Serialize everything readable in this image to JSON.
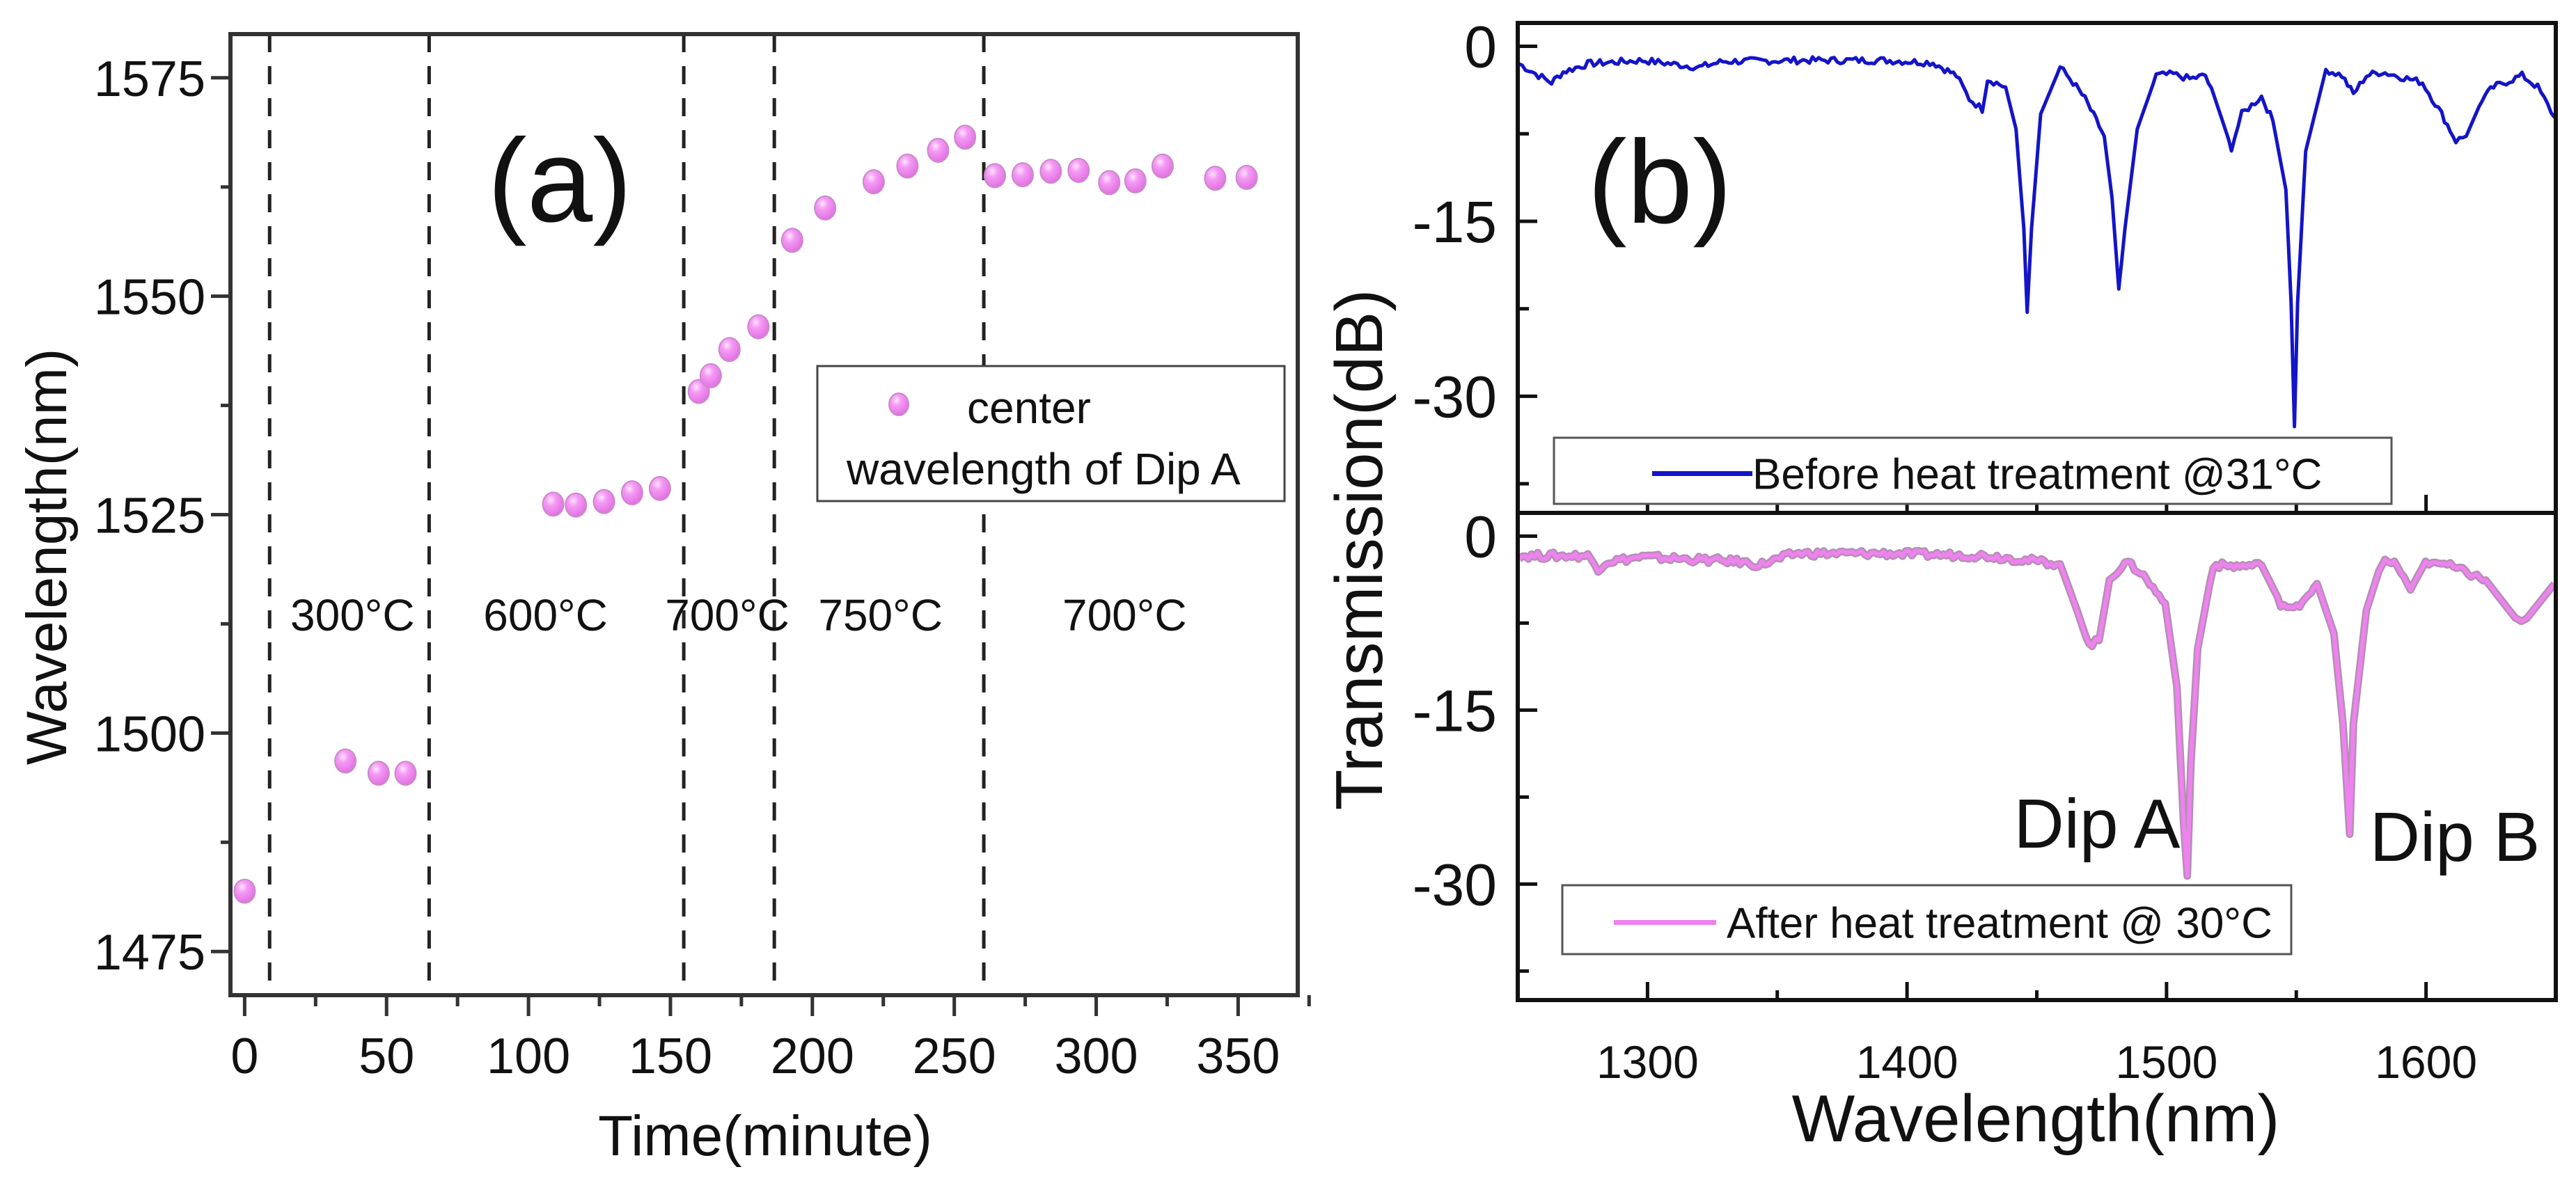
{
  "chart_data": [
    {
      "type": "scatter",
      "panel_label": "(a)",
      "xlabel": "Time(minute)",
      "ylabel": "Wavelength(nm)",
      "xlim": [
        -5,
        371
      ],
      "ylim": [
        1470,
        1580
      ],
      "xticks": [
        0,
        50,
        100,
        150,
        200,
        250,
        300,
        350
      ],
      "xtick_labels": [
        "0",
        "50",
        "100",
        "150",
        "200",
        "250",
        "300",
        "350"
      ],
      "yticks": [
        1475,
        1500,
        1525,
        1550,
        1575
      ],
      "ytick_labels": [
        "1475",
        "1500",
        "1525",
        "1550",
        "1575"
      ],
      "grid": false,
      "legend": {
        "placement": "right-middle",
        "lines": [
          "center",
          "wavelength of Dip A"
        ]
      },
      "series": [
        {
          "name": "center wavelength of Dip A",
          "color": "#ee82ee",
          "x": [
            0,
            35.5,
            47.2,
            56.7,
            108.7,
            116.7,
            126.6,
            136.5,
            146.3,
            160,
            164.2,
            170.8,
            181,
            192.9,
            204.5,
            221.6,
            233.5,
            244.3,
            253.8,
            264.3,
            274.1,
            284,
            293.8,
            304.6,
            313.8,
            323.4,
            341.9,
            353
          ],
          "y": [
            1481.9,
            1496.8,
            1495.4,
            1495.4,
            1526.2,
            1526.1,
            1526.5,
            1527.5,
            1528.0,
            1539.1,
            1540.9,
            1543.9,
            1546.5,
            1556.4,
            1560.1,
            1563.1,
            1564.9,
            1566.7,
            1568.2,
            1563.8,
            1563.9,
            1564.3,
            1564.4,
            1563.0,
            1563.2,
            1564.9,
            1563.5,
            1563.6
          ]
        }
      ],
      "vlines": [
        8.8,
        65,
        154.7,
        186.6,
        260.4
      ],
      "annotations": [
        {
          "text": "300°C",
          "x": 38,
          "y": 1513.5
        },
        {
          "text": "600°C",
          "x": 106,
          "y": 1513.5
        },
        {
          "text": "700°C",
          "x": 170,
          "y": 1513.5
        },
        {
          "text": "750°C",
          "x": 224,
          "y": 1513.5
        },
        {
          "text": "700°C",
          "x": 310,
          "y": 1513.5
        }
      ]
    },
    {
      "type": "line",
      "panel_label": "(b)",
      "xlabel": "Wavelength(nm)",
      "ylabel": "Transmission(dB)",
      "xlim": [
        1250,
        1650
      ],
      "xticks": [
        1300,
        1400,
        1500,
        1600
      ],
      "xtick_labels": [
        "1300",
        "1400",
        "1500",
        "1600"
      ],
      "grid": false,
      "subplots": [
        {
          "ylim": [
            -40,
            2
          ],
          "yticks": [
            0,
            -15,
            -30
          ],
          "ytick_labels": [
            "0",
            "-15",
            "-30"
          ],
          "legend": {
            "placement": "bottom-left",
            "label": "Before heat treatment @31°C"
          },
          "series": {
            "name": "Before heat treatment @31°C",
            "color": "#1414c8",
            "x": [
              1250.5,
              1258,
              1263,
              1267.5,
              1277,
              1298,
              1320,
              1329,
              1360,
              1391,
              1410,
              1419,
              1424,
              1429,
              1431,
              1438,
              1442,
              1445,
              1446.3,
              1448,
              1451.5,
              1459,
              1464,
              1468.6,
              1473,
              1476,
              1479,
              1481.6,
              1484,
              1488.7,
              1496,
              1502.6,
              1509,
              1515,
              1519.6,
              1525,
              1529,
              1536.6,
              1541,
              1546,
              1548,
              1549.3,
              1550.5,
              1553.6,
              1561.4,
              1567.6,
              1572,
              1577,
              1583,
              1598.6,
              1606,
              1611.5,
              1615.5,
              1621.7,
              1626,
              1637,
              1643,
              1649.5
            ],
            "y": [
              -1.5,
              -2.5,
              -3.1,
              -2.2,
              -1.5,
              -1.2,
              -1.8,
              -1.3,
              -1.2,
              -1.2,
              -1.4,
              -2.5,
              -4.5,
              -5.4,
              -2.8,
              -3.5,
              -7.1,
              -15.6,
              -22.8,
              -15.6,
              -5.8,
              -1.8,
              -3.1,
              -4.5,
              -6.4,
              -7.7,
              -13,
              -20.8,
              -15.6,
              -7.1,
              -2.5,
              -2.4,
              -2.8,
              -2.5,
              -5.1,
              -8.7,
              -5.8,
              -4.3,
              -6.4,
              -12.3,
              -22,
              -32.6,
              -22,
              -9,
              -2,
              -2.5,
              -4.1,
              -2.5,
              -2.2,
              -3.1,
              -5.8,
              -8.1,
              -7.7,
              -4.5,
              -3.5,
              -2.5,
              -3.5,
              -6.1
            ]
          }
        },
        {
          "ylim": [
            -40,
            2
          ],
          "yticks": [
            0,
            -15,
            -30
          ],
          "ytick_labels": [
            "0",
            "-15",
            "-30"
          ],
          "legend": {
            "placement": "bottom-left",
            "label": "After heat treatment @ 30°C"
          },
          "series": {
            "name": "After heat treatment @ 30°C",
            "color": "#ee82ee",
            "x": [
              1250.5,
              1277,
              1281,
              1284.5,
              1298,
              1335.6,
              1343,
              1357,
              1391,
              1431,
              1459,
              1465.5,
              1470,
              1474,
              1478,
              1484,
              1490,
              1499.5,
              1504,
              1506.6,
              1508,
              1509.4,
              1512,
              1518,
              1527,
              1536.6,
              1544,
              1549,
              1558,
              1564.5,
              1568,
              1570.6,
              1572,
              1577,
              1583,
              1589,
              1594,
              1598.6,
              1604.7,
              1614,
              1623,
              1635.6,
              1638.8,
              1649.5
            ],
            "y": [
              -1.7,
              -1.7,
              -2.8,
              -2.2,
              -1.8,
              -2.2,
              -2.5,
              -1.5,
              -1.5,
              -1.7,
              -2.4,
              -6.4,
              -9.4,
              -9,
              -3.8,
              -2.2,
              -3.1,
              -5.8,
              -13,
              -24.8,
              -29.3,
              -19.5,
              -9.7,
              -2.5,
              -2.6,
              -2.5,
              -5.8,
              -6.4,
              -4.1,
              -8.4,
              -16.2,
              -25.7,
              -16.2,
              -6.4,
              -2.2,
              -2.5,
              -4.8,
              -2.5,
              -2.2,
              -3,
              -3.8,
              -7.4,
              -7.1,
              -4.1
            ]
          },
          "annotations": [
            {
              "text": "Dip A",
              "x": 1508,
              "y": -29.3
            },
            {
              "text": "Dip B",
              "x": 1570.6,
              "y": -25.7
            }
          ]
        }
      ]
    }
  ]
}
